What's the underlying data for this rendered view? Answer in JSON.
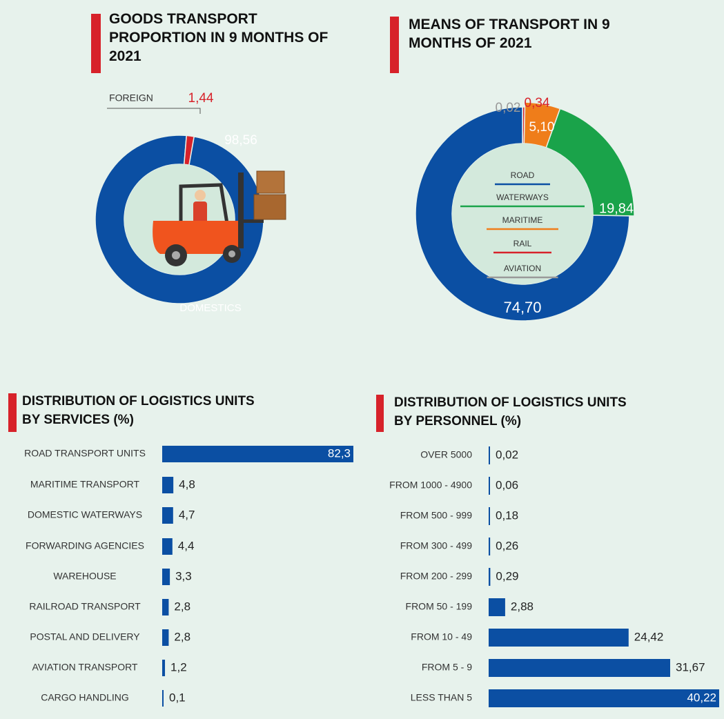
{
  "chart_data": [
    {
      "type": "donut",
      "title": "GOODS TRANSPORT PROPORTION IN 9 MONTHS OF 2021",
      "categories": [
        "DOMESTICS",
        "FOREIGN"
      ],
      "values": [
        98.56,
        1.44
      ],
      "value_labels": [
        "98,56",
        "1,44"
      ],
      "colors": [
        "#0b4fa3",
        "#d7222a"
      ]
    },
    {
      "type": "donut",
      "title": "MEANS OF TRANSPORT IN 9 MONTHS OF 2021",
      "categories": [
        "ROAD",
        "WATERWAYS",
        "MARITIME",
        "RAIL",
        "AVIATION"
      ],
      "values": [
        74.7,
        19.84,
        5.1,
        0.34,
        0.02
      ],
      "value_labels": [
        "74,70",
        "19,84",
        "5,10",
        "0,34",
        "0,02"
      ],
      "colors": [
        "#0b4fa3",
        "#1aa34a",
        "#ef7d1a",
        "#d7222a",
        "#999999"
      ]
    },
    {
      "type": "hbar",
      "title": "DISTRIBUTION OF LOGISTICS UNITS BY SERVICES (%)",
      "categories": [
        "ROAD TRANSPORT UNITS",
        "MARITIME TRANSPORT",
        "DOMESTIC WATERWAYS",
        "FORWARDING AGENCIES",
        "WAREHOUSE",
        "RAILROAD TRANSPORT",
        "POSTAL AND DELIVERY",
        "AVIATION TRANSPORT",
        "CARGO HANDLING"
      ],
      "values": [
        82.3,
        4.8,
        4.7,
        4.4,
        3.3,
        2.8,
        2.8,
        1.2,
        0.1
      ],
      "value_labels": [
        "82,3",
        "4,8",
        "4,7",
        "4,4",
        "3,3",
        "2,8",
        "2,8",
        "1,2",
        "0,1"
      ],
      "color": "#0b4fa3"
    },
    {
      "type": "hbar",
      "title": "DISTRIBUTION OF LOGISTICS UNITS BY PERSONNEL (%)",
      "categories": [
        "OVER 5000",
        "FROM 1000 - 4900",
        "FROM 500 - 999",
        "FROM 300 - 499",
        "FROM 200 - 299",
        "FROM 50 - 199",
        "FROM 10 - 49",
        "FROM 5 - 9",
        "LESS THAN 5"
      ],
      "values": [
        0.02,
        0.06,
        0.18,
        0.26,
        0.29,
        2.88,
        24.42,
        31.67,
        40.22
      ],
      "value_labels": [
        "0,02",
        "0,06",
        "0,18",
        "0,26",
        "0,29",
        "2,88",
        "24,42",
        "31,67",
        "40,22"
      ],
      "color": "#0b4fa3"
    }
  ]
}
